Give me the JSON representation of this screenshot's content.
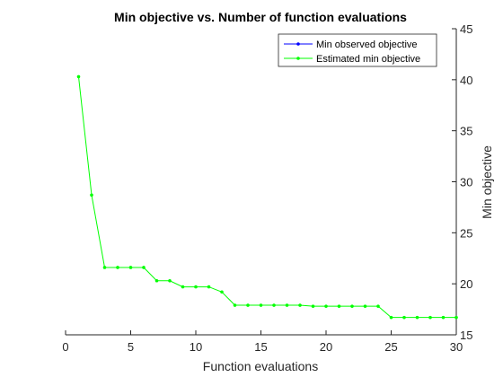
{
  "chart_data": {
    "type": "line",
    "title": "Min objective vs. Number of function evaluations",
    "xlabel": "Function evaluations",
    "ylabel": "Min objective",
    "xlim": [
      0,
      30
    ],
    "ylim": [
      15,
      45
    ],
    "xticks": [
      0,
      5,
      10,
      15,
      20,
      25,
      30
    ],
    "yticks": [
      15,
      20,
      25,
      30,
      35,
      40,
      45
    ],
    "y_axis_location": "right",
    "grid": false,
    "legend_location": "top-right",
    "series": [
      {
        "name": "Min observed objective",
        "color": "#0000ff",
        "marker": "dot",
        "x": [],
        "y": []
      },
      {
        "name": "Estimated min objective",
        "color": "#00ff00",
        "marker": "dot",
        "x": [
          1,
          2,
          3,
          4,
          5,
          6,
          7,
          8,
          9,
          10,
          11,
          12,
          13,
          14,
          15,
          16,
          17,
          18,
          19,
          20,
          21,
          22,
          23,
          24,
          25,
          26,
          27,
          28,
          29,
          30
        ],
        "y": [
          40.3,
          28.7,
          21.6,
          21.6,
          21.6,
          21.6,
          20.3,
          20.3,
          19.7,
          19.7,
          19.7,
          19.2,
          17.9,
          17.9,
          17.9,
          17.9,
          17.9,
          17.9,
          17.8,
          17.8,
          17.8,
          17.8,
          17.8,
          17.8,
          16.7,
          16.7,
          16.7,
          16.7,
          16.7,
          16.7
        ]
      }
    ]
  }
}
